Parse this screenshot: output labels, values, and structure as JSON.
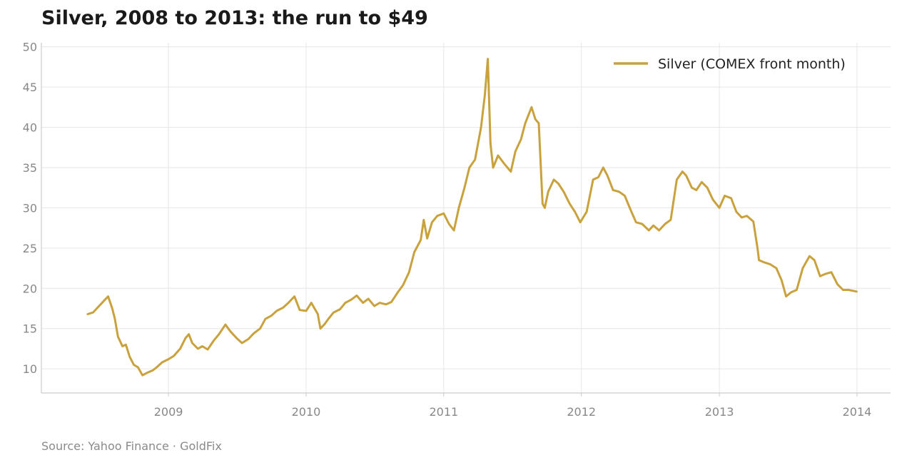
{
  "title": "Silver, 2008 to 2013: the run to $49",
  "source": "Source: Yahoo Finance · GoldFix",
  "chart_data": {
    "type": "line",
    "title": "Silver, 2008 to 2013: the run to $49",
    "xlabel": "",
    "ylabel": "",
    "xlim": [
      "2008-01-30",
      "2014-03-31"
    ],
    "ylim": [
      7,
      50.5
    ],
    "x_ticks": [
      "2009",
      "2010",
      "2011",
      "2012",
      "2013",
      "2014"
    ],
    "y_ticks": [
      10,
      15,
      20,
      25,
      30,
      35,
      40,
      45,
      50
    ],
    "grid": true,
    "legend_position": "top-right",
    "colors": {
      "series": "#c9a23d",
      "grid": "#e6e6e6",
      "axis": "#cccccc",
      "tick_text": "#888888"
    },
    "series": [
      {
        "name": "Silver (COMEX front month)",
        "x": [
          "2008-06-01",
          "2008-06-15",
          "2008-07-01",
          "2008-07-15",
          "2008-07-25",
          "2008-08-05",
          "2008-08-12",
          "2008-08-20",
          "2008-09-01",
          "2008-09-10",
          "2008-09-20",
          "2008-10-01",
          "2008-10-12",
          "2008-10-24",
          "2008-11-05",
          "2008-11-20",
          "2008-12-01",
          "2008-12-15",
          "2009-01-01",
          "2009-01-15",
          "2009-02-01",
          "2009-02-15",
          "2009-02-24",
          "2009-03-05",
          "2009-03-20",
          "2009-04-01",
          "2009-04-15",
          "2009-05-01",
          "2009-05-15",
          "2009-06-01",
          "2009-06-15",
          "2009-07-01",
          "2009-07-15",
          "2009-08-01",
          "2009-08-15",
          "2009-09-01",
          "2009-09-15",
          "2009-10-01",
          "2009-10-15",
          "2009-11-01",
          "2009-11-15",
          "2009-12-01",
          "2009-12-15",
          "2010-01-01",
          "2010-01-15",
          "2010-02-01",
          "2010-02-08",
          "2010-02-20",
          "2010-03-01",
          "2010-03-15",
          "2010-04-01",
          "2010-04-15",
          "2010-05-01",
          "2010-05-15",
          "2010-06-01",
          "2010-06-15",
          "2010-07-01",
          "2010-07-15",
          "2010-08-01",
          "2010-08-15",
          "2010-09-01",
          "2010-09-15",
          "2010-10-01",
          "2010-10-15",
          "2010-11-01",
          "2010-11-09",
          "2010-11-18",
          "2010-12-01",
          "2010-12-15",
          "2011-01-01",
          "2011-01-15",
          "2011-01-28",
          "2011-02-10",
          "2011-02-25",
          "2011-03-10",
          "2011-03-25",
          "2011-04-10",
          "2011-04-20",
          "2011-04-28",
          "2011-05-05",
          "2011-05-12",
          "2011-05-25",
          "2011-06-10",
          "2011-06-28",
          "2011-07-10",
          "2011-07-25",
          "2011-08-05",
          "2011-08-22",
          "2011-09-01",
          "2011-09-10",
          "2011-09-20",
          "2011-09-26",
          "2011-10-05",
          "2011-10-20",
          "2011-11-01",
          "2011-11-15",
          "2011-12-01",
          "2011-12-15",
          "2011-12-29",
          "2012-01-15",
          "2012-02-01",
          "2012-02-15",
          "2012-02-28",
          "2012-03-10",
          "2012-03-25",
          "2012-04-10",
          "2012-04-25",
          "2012-05-10",
          "2012-05-25",
          "2012-06-10",
          "2012-06-28",
          "2012-07-10",
          "2012-07-25",
          "2012-08-10",
          "2012-08-25",
          "2012-09-10",
          "2012-09-25",
          "2012-10-05",
          "2012-10-20",
          "2012-11-01",
          "2012-11-15",
          "2012-11-30",
          "2012-12-15",
          "2013-01-01",
          "2013-01-15",
          "2013-02-01",
          "2013-02-15",
          "2013-03-01",
          "2013-03-15",
          "2013-04-01",
          "2013-04-12",
          "2013-04-16",
          "2013-05-01",
          "2013-05-15",
          "2013-06-01",
          "2013-06-15",
          "2013-06-27",
          "2013-07-10",
          "2013-07-25",
          "2013-08-10",
          "2013-08-28",
          "2013-09-10",
          "2013-09-25",
          "2013-10-10",
          "2013-10-25",
          "2013-11-10",
          "2013-11-25",
          "2013-12-10",
          "2013-12-31"
        ],
        "values": [
          16.8,
          17.0,
          17.8,
          18.5,
          19.0,
          17.5,
          16.2,
          14.0,
          12.8,
          13.0,
          11.5,
          10.5,
          10.2,
          9.2,
          9.5,
          9.8,
          10.2,
          10.8,
          11.2,
          11.6,
          12.5,
          13.8,
          14.3,
          13.2,
          12.5,
          12.8,
          12.4,
          13.5,
          14.3,
          15.5,
          14.6,
          13.8,
          13.2,
          13.7,
          14.4,
          15.0,
          16.2,
          16.6,
          17.2,
          17.6,
          18.2,
          19.0,
          17.3,
          17.2,
          18.2,
          16.8,
          15.0,
          15.6,
          16.2,
          17.0,
          17.4,
          18.2,
          18.6,
          19.1,
          18.2,
          18.7,
          17.8,
          18.2,
          18.0,
          18.3,
          19.5,
          20.4,
          22.0,
          24.5,
          26.0,
          28.5,
          26.2,
          28.2,
          29.0,
          29.3,
          28.0,
          27.2,
          30.0,
          32.5,
          35.0,
          36.0,
          40.0,
          44.0,
          48.5,
          38.0,
          35.0,
          36.5,
          35.5,
          34.5,
          37.0,
          38.5,
          40.5,
          42.5,
          41.0,
          40.5,
          30.5,
          30.0,
          32.0,
          33.5,
          33.0,
          32.0,
          30.5,
          29.5,
          28.2,
          29.5,
          33.5,
          33.8,
          35.0,
          34.0,
          32.2,
          32.0,
          31.5,
          29.8,
          28.2,
          28.0,
          27.2,
          27.8,
          27.2,
          28.0,
          28.5,
          33.5,
          34.5,
          34.0,
          32.5,
          32.2,
          33.2,
          32.5,
          31.0,
          30.0,
          31.5,
          31.2,
          29.5,
          28.8,
          29.0,
          28.3,
          25.0,
          23.5,
          23.2,
          23.0,
          22.5,
          21.0,
          19.0,
          19.5,
          19.8,
          22.5,
          24.0,
          23.5,
          21.5,
          21.8,
          22.0,
          20.5,
          19.8,
          19.8,
          19.6
        ]
      }
    ]
  }
}
